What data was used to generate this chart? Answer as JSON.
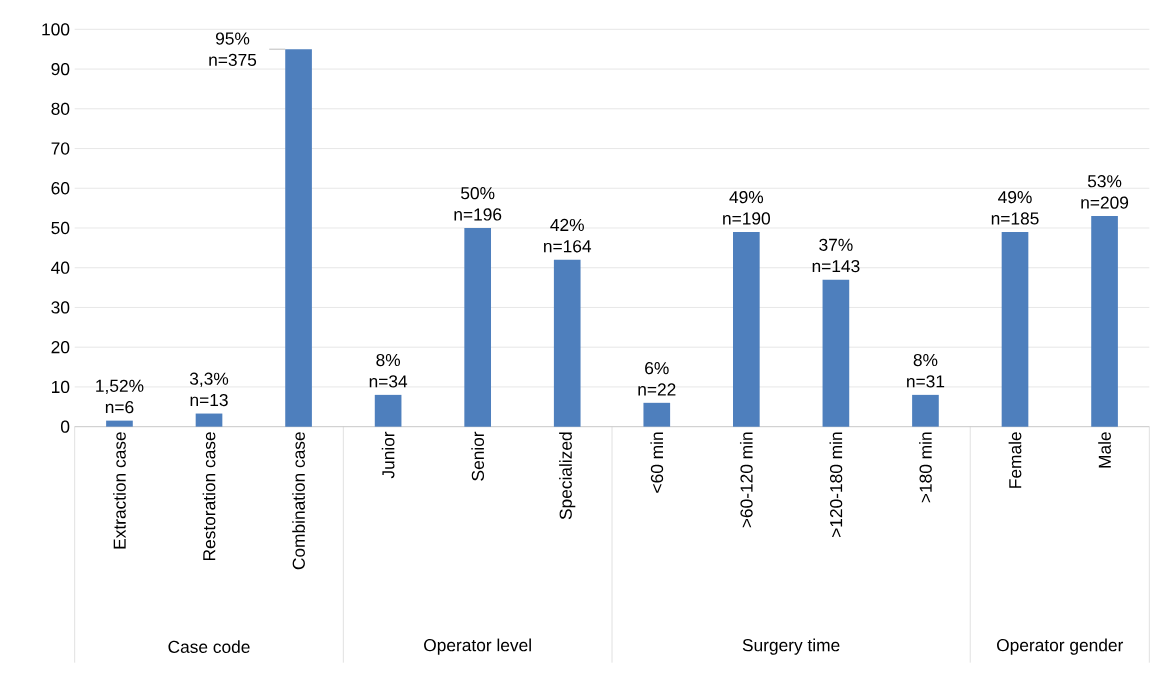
{
  "chart_data": {
    "type": "bar",
    "categories": [
      "Extraction case",
      "Restoration case",
      "Combination case",
      "Junior",
      "Senior",
      "Specialized",
      "<60 min",
      ">60-120 min",
      ">120-180 min",
      ">180 min",
      "Female",
      "Male"
    ],
    "values": [
      1.52,
      3.3,
      95,
      8,
      50,
      42,
      6,
      49,
      37,
      8,
      49,
      53
    ],
    "value_labels": [
      "1,52% n=6",
      "3,3% n=13",
      "95% n=375",
      "8% n=34",
      "50% n=196",
      "42% n=164",
      "6% n=22",
      "49% n=190",
      "37% n=143",
      "8% n=31",
      "49% n=185",
      "53% n=209"
    ],
    "color": "#4e7fbd",
    "ylim": [
      0,
      100
    ],
    "yticks": [
      0,
      10,
      20,
      30,
      40,
      50,
      60,
      70,
      80,
      90,
      100
    ],
    "grid": "y",
    "annotations": [
      "Case code",
      "Operator level",
      "Surgery time",
      "Operator gender"
    ]
  }
}
